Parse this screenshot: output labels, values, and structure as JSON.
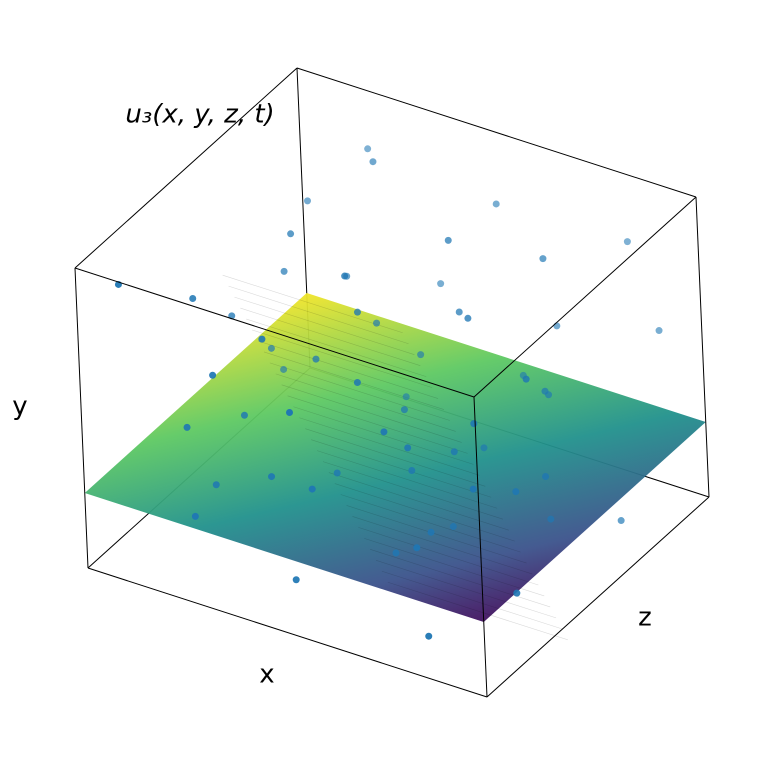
{
  "chart_data": {
    "type": "scatter3d",
    "title": "u₃(x, y, z, t)",
    "xlabel": "x",
    "ylabel": "y",
    "zlabel": "z",
    "xlim": [
      0,
      1
    ],
    "ylim": [
      0,
      1
    ],
    "zlim": [
      0,
      1
    ],
    "plane_level": 0.25,
    "color": "#1f77b4",
    "x": [
      0.05,
      0.12,
      0.2,
      0.3,
      0.42,
      0.55,
      0.65,
      0.78,
      0.9,
      0.1,
      0.25,
      0.35,
      0.5,
      0.62,
      0.72,
      0.85,
      0.95,
      0.15,
      0.28,
      0.4,
      0.52,
      0.68,
      0.8,
      0.92,
      0.08,
      0.18,
      0.33,
      0.47,
      0.6,
      0.75,
      0.88,
      0.22,
      0.38,
      0.58,
      0.7,
      0.83,
      0.97,
      0.13,
      0.44,
      0.64,
      0.05,
      0.3,
      0.55,
      0.8,
      0.95,
      0.2,
      0.45,
      0.7,
      0.35,
      0.6,
      0.1,
      0.5,
      0.85,
      0.25,
      0.4,
      0.65,
      0.75,
      0.15,
      0.9,
      0.57
    ],
    "y": [
      0.9,
      0.75,
      0.8,
      0.95,
      0.7,
      0.85,
      0.6,
      0.9,
      0.75,
      0.55,
      0.65,
      0.5,
      0.6,
      0.72,
      0.55,
      0.68,
      0.6,
      0.4,
      0.45,
      0.35,
      0.42,
      0.38,
      0.5,
      0.45,
      0.3,
      0.32,
      0.28,
      0.33,
      0.3,
      0.29,
      0.35,
      0.2,
      0.18,
      0.15,
      0.22,
      0.12,
      0.2,
      0.1,
      0.05,
      0.08,
      0.15,
      0.1,
      0.02,
      0.05,
      0.1,
      0.85,
      0.9,
      0.8,
      0.78,
      0.95,
      0.7,
      0.7,
      0.82,
      0.58,
      0.52,
      0.48,
      0.4,
      0.62,
      0.55,
      0.27
    ],
    "z": [
      0.1,
      0.3,
      0.6,
      0.8,
      0.5,
      0.9,
      0.2,
      0.7,
      0.4,
      0.5,
      0.15,
      0.7,
      0.35,
      0.6,
      0.85,
      0.25,
      0.9,
      0.2,
      0.55,
      0.8,
      0.1,
      0.45,
      0.65,
      0.3,
      0.7,
      0.4,
      0.25,
      0.6,
      0.9,
      0.15,
      0.5,
      0.1,
      0.45,
      0.75,
      0.3,
      0.6,
      0.2,
      0.35,
      0.15,
      0.5,
      0.8,
      0.9,
      0.4,
      0.1,
      0.7,
      0.95,
      0.4,
      0.5,
      0.2,
      0.6,
      0.85,
      0.05,
      0.95,
      0.75,
      0.9,
      0.3,
      0.75,
      0.65,
      0.15,
      0.45
    ]
  }
}
